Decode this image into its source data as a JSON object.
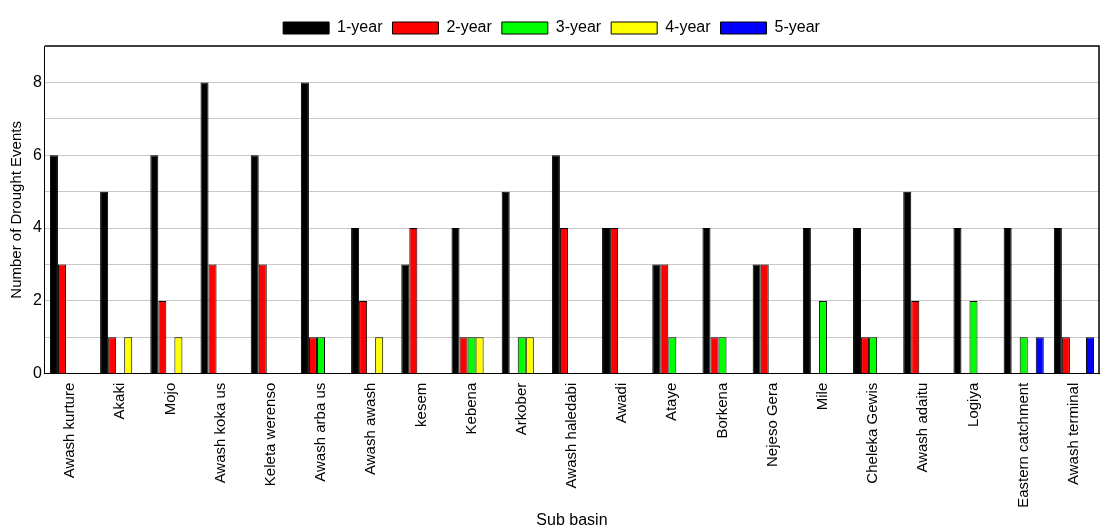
{
  "chart_data": {
    "type": "bar",
    "xlabel": "Sub basin",
    "ylabel": "Number of Drought Events",
    "categories": [
      "Awash kurture",
      "Akaki",
      "Mojo",
      "Awash koka us",
      "Keleta werenso",
      "Awash arba us",
      "Awash awash",
      "kesem",
      "Kebena",
      "Arkober",
      "Awash haledabi",
      "Awadi",
      "Ataye",
      "Borkena",
      "Nejeso Gera",
      "Mile",
      "Cheleka Gewis",
      "Awash adaitu",
      "Logiya",
      "Eastern catchment",
      "Awash terminal"
    ],
    "series": [
      {
        "name": "1-year",
        "color": "#000000",
        "values": [
          6,
          5,
          6,
          8,
          6,
          8,
          4,
          3,
          4,
          5,
          6,
          4,
          3,
          4,
          3,
          4,
          4,
          5,
          4,
          4,
          4
        ]
      },
      {
        "name": "2-year",
        "color": "#ff0000",
        "values": [
          3,
          1,
          2,
          3,
          3,
          1,
          2,
          4,
          1,
          0,
          4,
          4,
          3,
          1,
          3,
          0,
          1,
          2,
          0,
          0,
          1
        ]
      },
      {
        "name": "3-year",
        "color": "#00ff00",
        "values": [
          0,
          0,
          0,
          0,
          0,
          1,
          0,
          0,
          1,
          1,
          0,
          0,
          1,
          1,
          0,
          2,
          1,
          0,
          2,
          1,
          0
        ]
      },
      {
        "name": "4-year",
        "color": "#ffff00",
        "values": [
          0,
          1,
          1,
          0,
          0,
          0,
          1,
          0,
          1,
          1,
          0,
          0,
          0,
          0,
          0,
          0,
          0,
          0,
          0,
          0,
          0
        ]
      },
      {
        "name": "5-year",
        "color": "#0000ff",
        "values": [
          0,
          0,
          0,
          0,
          0,
          0,
          0,
          0,
          0,
          0,
          0,
          0,
          0,
          0,
          0,
          0,
          0,
          0,
          0,
          1,
          1
        ]
      }
    ],
    "ylim": [
      0,
      9
    ],
    "yticks": [
      0,
      {
        "value": 1,
        "label": null
      },
      2,
      {
        "value": 3,
        "label": null
      },
      4,
      {
        "value": 5,
        "label": null
      },
      6,
      {
        "value": 7,
        "label": null
      },
      8
    ],
    "grid": "y",
    "legend": "top"
  }
}
